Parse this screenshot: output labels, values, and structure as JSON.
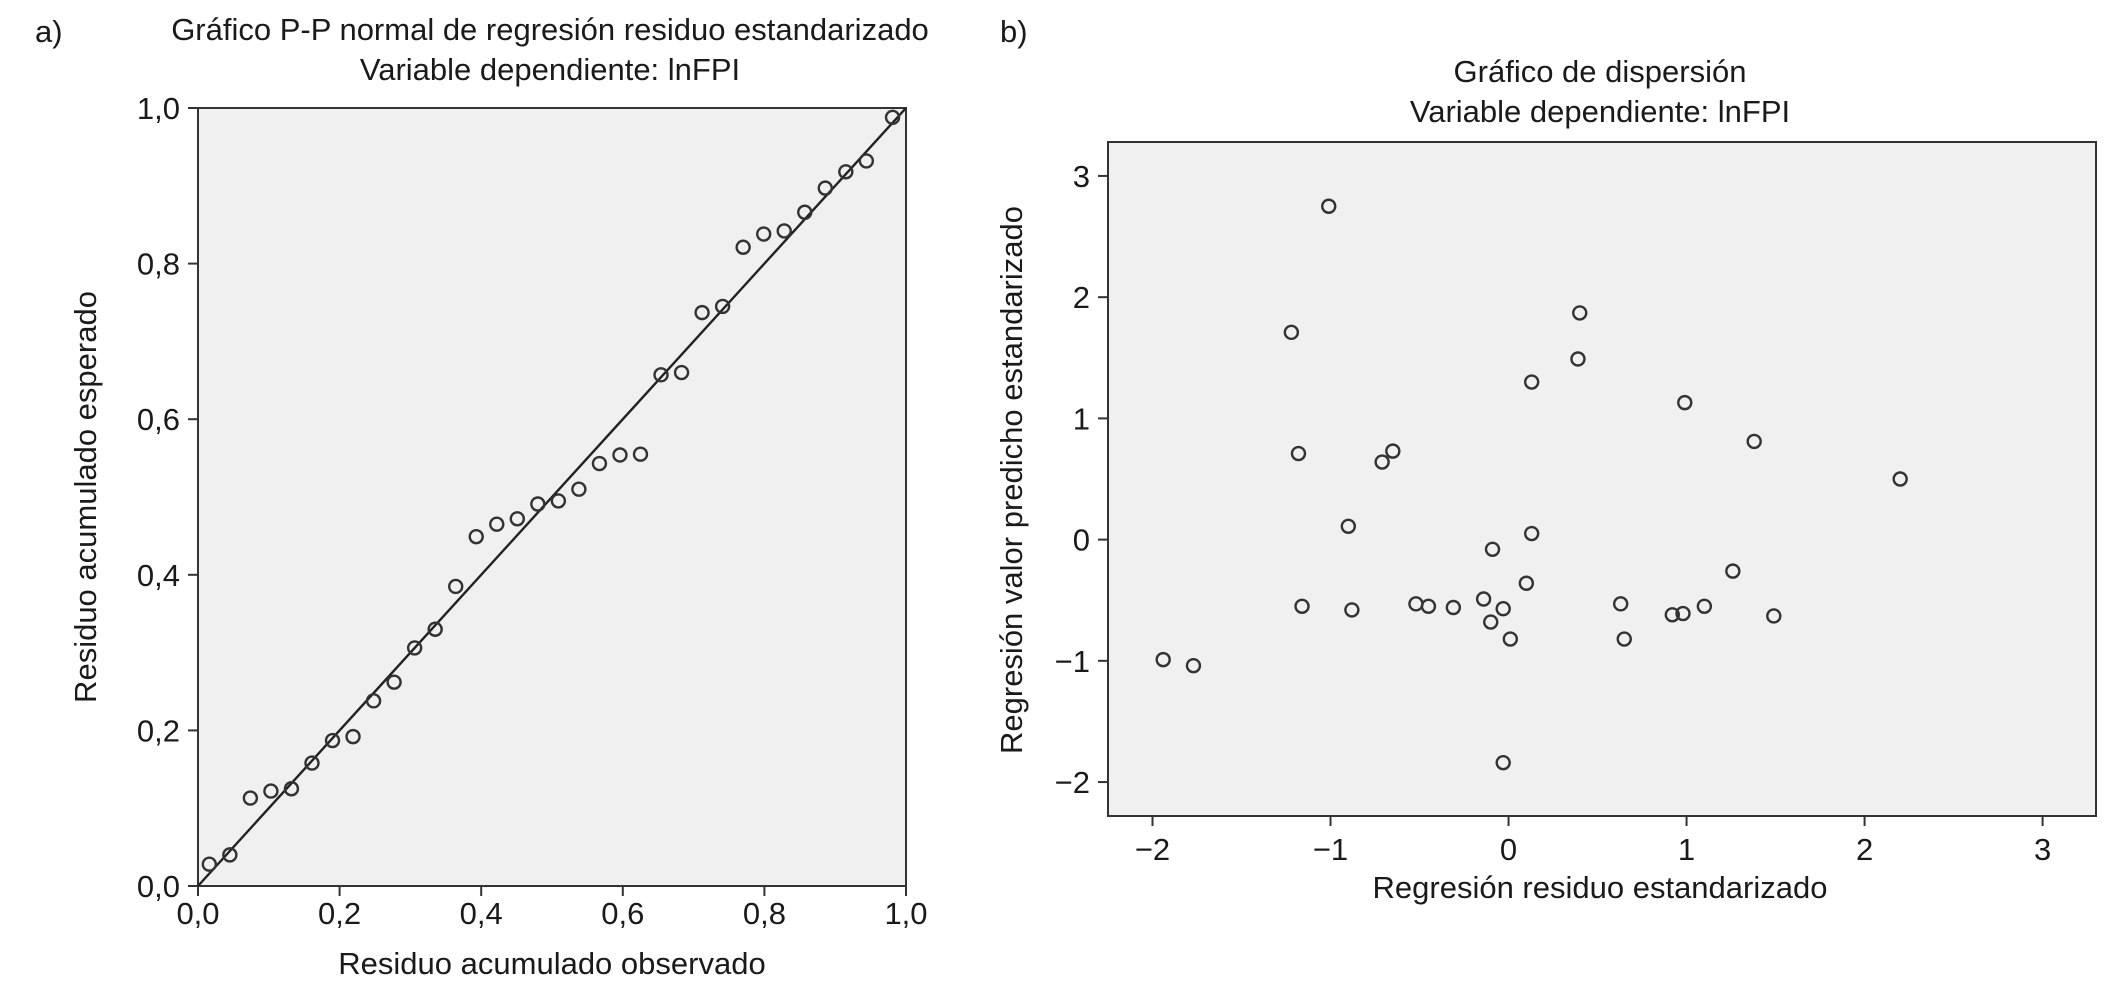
{
  "chart_data": [
    {
      "type": "scatter",
      "panel_label": "a)",
      "title": "Gráfico P-P normal de regresión residuo estandarizado",
      "subtitle": "Variable dependiente: lnFPI",
      "xlabel": "Residuo acumulado observado",
      "ylabel": "Residuo acumulado esperado",
      "xlim": [
        0,
        1
      ],
      "ylim": [
        0,
        1
      ],
      "xticks": [
        "0,0",
        "0,2",
        "0,4",
        "0,6",
        "0,8",
        "1,0"
      ],
      "yticks": [
        "0,0",
        "0,2",
        "0,4",
        "0,6",
        "0,8",
        "1,0"
      ],
      "xtick_values": [
        0,
        0.2,
        0.4,
        0.6,
        0.8,
        1.0
      ],
      "ytick_values": [
        0,
        0.2,
        0.4,
        0.6,
        0.8,
        1.0
      ],
      "reference_line": {
        "from": [
          0,
          0
        ],
        "to": [
          1,
          1
        ]
      },
      "grid": false,
      "points": [
        {
          "x": 0.016,
          "y": 0.028
        },
        {
          "x": 0.045,
          "y": 0.04
        },
        {
          "x": 0.074,
          "y": 0.113
        },
        {
          "x": 0.103,
          "y": 0.122
        },
        {
          "x": 0.132,
          "y": 0.125
        },
        {
          "x": 0.161,
          "y": 0.158
        },
        {
          "x": 0.19,
          "y": 0.187
        },
        {
          "x": 0.219,
          "y": 0.192
        },
        {
          "x": 0.248,
          "y": 0.238
        },
        {
          "x": 0.277,
          "y": 0.262
        },
        {
          "x": 0.306,
          "y": 0.306
        },
        {
          "x": 0.335,
          "y": 0.33
        },
        {
          "x": 0.364,
          "y": 0.385
        },
        {
          "x": 0.393,
          "y": 0.449
        },
        {
          "x": 0.422,
          "y": 0.465
        },
        {
          "x": 0.451,
          "y": 0.472
        },
        {
          "x": 0.48,
          "y": 0.491
        },
        {
          "x": 0.509,
          "y": 0.495
        },
        {
          "x": 0.538,
          "y": 0.51
        },
        {
          "x": 0.567,
          "y": 0.543
        },
        {
          "x": 0.596,
          "y": 0.554
        },
        {
          "x": 0.625,
          "y": 0.555
        },
        {
          "x": 0.654,
          "y": 0.657
        },
        {
          "x": 0.683,
          "y": 0.66
        },
        {
          "x": 0.712,
          "y": 0.737
        },
        {
          "x": 0.741,
          "y": 0.745
        },
        {
          "x": 0.77,
          "y": 0.821
        },
        {
          "x": 0.799,
          "y": 0.838
        },
        {
          "x": 0.828,
          "y": 0.842
        },
        {
          "x": 0.857,
          "y": 0.866
        },
        {
          "x": 0.886,
          "y": 0.897
        },
        {
          "x": 0.915,
          "y": 0.918
        },
        {
          "x": 0.944,
          "y": 0.932
        },
        {
          "x": 0.981,
          "y": 0.988
        }
      ]
    },
    {
      "type": "scatter",
      "panel_label": "b)",
      "title": "Gráfico de dispersión",
      "subtitle": "Variable dependiente: lnFPI",
      "xlabel": "Regresión residuo estandarizado",
      "ylabel": "Regresión valor predicho estandarizado",
      "xlim": [
        -2.25,
        3.3
      ],
      "ylim": [
        -2.28,
        3.28
      ],
      "xticks": [
        "−2",
        "−1",
        "0",
        "1",
        "2",
        "3"
      ],
      "yticks": [
        "−2",
        "−1",
        "0",
        "1",
        "2",
        "3"
      ],
      "xtick_values": [
        -2,
        -1,
        0,
        1,
        2,
        3
      ],
      "ytick_values": [
        -2,
        -1,
        0,
        1,
        2,
        3
      ],
      "grid": false,
      "points": [
        {
          "x": -1.94,
          "y": -0.99
        },
        {
          "x": -1.77,
          "y": -1.04
        },
        {
          "x": -1.22,
          "y": 1.71
        },
        {
          "x": -1.18,
          "y": 0.71
        },
        {
          "x": -1.16,
          "y": -0.55
        },
        {
          "x": -1.01,
          "y": 2.75
        },
        {
          "x": -0.9,
          "y": 0.11
        },
        {
          "x": -0.88,
          "y": -0.58
        },
        {
          "x": -0.71,
          "y": 0.64
        },
        {
          "x": -0.65,
          "y": 0.73
        },
        {
          "x": -0.52,
          "y": -0.53
        },
        {
          "x": -0.45,
          "y": -0.55
        },
        {
          "x": -0.31,
          "y": -0.56
        },
        {
          "x": -0.14,
          "y": -0.49
        },
        {
          "x": -0.1,
          "y": -0.68
        },
        {
          "x": -0.09,
          "y": -0.08
        },
        {
          "x": -0.03,
          "y": -1.84
        },
        {
          "x": -0.03,
          "y": -0.57
        },
        {
          "x": 0.01,
          "y": -0.82
        },
        {
          "x": 0.1,
          "y": -0.36
        },
        {
          "x": 0.13,
          "y": 0.05
        },
        {
          "x": 0.13,
          "y": 1.3
        },
        {
          "x": 0.39,
          "y": 1.49
        },
        {
          "x": 0.4,
          "y": 1.87
        },
        {
          "x": 0.63,
          "y": -0.53
        },
        {
          "x": 0.65,
          "y": -0.82
        },
        {
          "x": 0.92,
          "y": -0.62
        },
        {
          "x": 0.98,
          "y": -0.61
        },
        {
          "x": 0.99,
          "y": 1.13
        },
        {
          "x": 1.1,
          "y": -0.55
        },
        {
          "x": 1.26,
          "y": -0.26
        },
        {
          "x": 1.38,
          "y": 0.81
        },
        {
          "x": 1.49,
          "y": -0.63
        },
        {
          "x": 2.2,
          "y": 0.5
        }
      ]
    }
  ]
}
